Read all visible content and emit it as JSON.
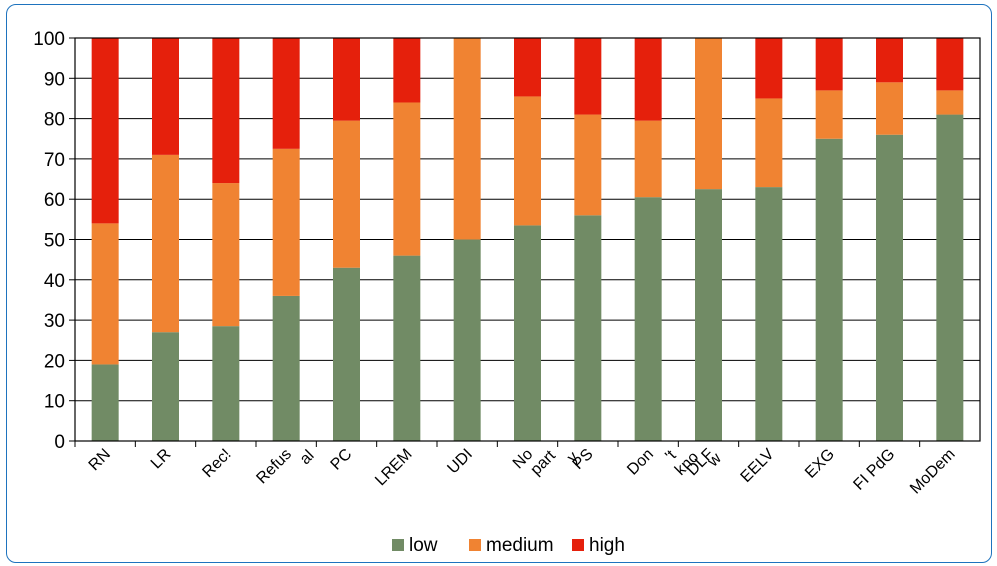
{
  "chart_data": {
    "type": "bar",
    "stacked": true,
    "categories": [
      "RN",
      "LR",
      "Rec!",
      "Refus\nal",
      "PC",
      "LREM",
      "UDI",
      "No\npart\ny",
      "PS",
      "Don\n't\nkno\nw",
      "DLF",
      "EELV",
      "EXG",
      "FI PdG",
      "MoDem"
    ],
    "series": [
      {
        "name": "low",
        "color": "#718b65",
        "values": [
          19,
          27,
          28.5,
          36,
          43,
          46,
          50,
          53.5,
          56,
          60.5,
          62.5,
          63,
          75,
          76,
          81
        ]
      },
      {
        "name": "medium",
        "color": "#f08332",
        "values": [
          35,
          44,
          35.5,
          36.5,
          36.5,
          38,
          50,
          32,
          25,
          19,
          37.5,
          22,
          12,
          13,
          6
        ]
      },
      {
        "name": "high",
        "color": "#e5200c",
        "values": [
          46,
          29,
          36,
          27.5,
          20.5,
          16,
          0,
          14.5,
          19,
          20.5,
          0,
          15,
          13,
          11,
          13
        ]
      }
    ],
    "ylim": [
      0,
      100
    ],
    "yticks": [
      0,
      10,
      20,
      30,
      40,
      50,
      60,
      70,
      80,
      90,
      100
    ],
    "grid": true,
    "legend_position": "bottom"
  }
}
